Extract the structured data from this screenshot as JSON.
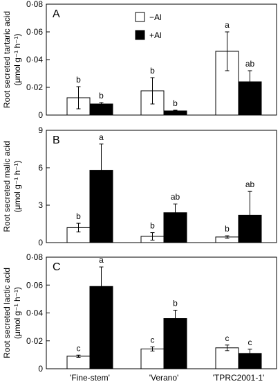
{
  "chart_data": [
    {
      "panel": "A",
      "type": "bar",
      "ylabel": "Root secreted tartaric acid",
      "yunit": "(μmol g⁻¹ h⁻¹)",
      "ylim": [
        0,
        0.08
      ],
      "yticks": [
        0,
        0.02,
        0.04,
        0.06,
        0.08
      ],
      "ytick_labels": [
        "0",
        "0·02",
        "0·04",
        "0·06",
        "0·08"
      ],
      "categories": [
        "'Fine-stem'",
        "'Verano'",
        "'TPRC2001-1'"
      ],
      "series": [
        {
          "name": "−Al",
          "fill": "#ffffff",
          "values": [
            0.0125,
            0.0175,
            0.046
          ],
          "errors": [
            0.008,
            0.0095,
            0.014
          ],
          "letters": [
            "b",
            "b",
            "a"
          ]
        },
        {
          "name": "+Al",
          "fill": "#000000",
          "values": [
            0.008,
            0.003,
            0.024
          ],
          "errors": [
            0.001,
            0.0005,
            0.008
          ],
          "letters": [
            "b",
            "b",
            "ab"
          ]
        }
      ],
      "legend": {
        "position": "top-center",
        "entries": [
          "−Al",
          "+Al"
        ]
      }
    },
    {
      "panel": "B",
      "type": "bar",
      "ylabel": "Root secreted malic acid",
      "yunit": "(μmol g⁻¹ h⁻¹)",
      "ylim": [
        0,
        9
      ],
      "yticks": [
        0,
        3,
        6,
        9
      ],
      "ytick_labels": [
        "0",
        "3",
        "6",
        "9"
      ],
      "categories": [
        "'Fine-stem'",
        "'Verano'",
        "'TPRC2001-1'"
      ],
      "series": [
        {
          "name": "−Al",
          "fill": "#ffffff",
          "values": [
            1.2,
            0.5,
            0.45
          ],
          "errors": [
            0.35,
            0.3,
            0.1
          ],
          "letters": [
            "b",
            "b",
            "b"
          ]
        },
        {
          "name": "+Al",
          "fill": "#000000",
          "values": [
            5.8,
            2.4,
            2.2
          ],
          "errors": [
            2.1,
            0.7,
            1.9
          ],
          "letters": [
            "a",
            "ab",
            "ab"
          ]
        }
      ]
    },
    {
      "panel": "C",
      "type": "bar",
      "ylabel": "Root secreted lactic acid",
      "yunit": "(μmol g⁻¹ h⁻¹)",
      "ylim": [
        0,
        0.08
      ],
      "yticks": [
        0,
        0.02,
        0.04,
        0.06,
        0.08
      ],
      "ytick_labels": [
        "0",
        "0·02",
        "0·04",
        "0·06",
        "0·08"
      ],
      "categories": [
        "'Fine-stem'",
        "'Verano'",
        "'TPRC2001-1'"
      ],
      "series": [
        {
          "name": "−Al",
          "fill": "#ffffff",
          "values": [
            0.009,
            0.0142,
            0.015
          ],
          "errors": [
            0.0008,
            0.0015,
            0.002
          ],
          "letters": [
            "c",
            "c",
            "c"
          ]
        },
        {
          "name": "+Al",
          "fill": "#000000",
          "values": [
            0.059,
            0.036,
            0.011
          ],
          "errors": [
            0.014,
            0.006,
            0.003
          ],
          "letters": [
            "a",
            "b",
            "c"
          ]
        }
      ]
    }
  ]
}
